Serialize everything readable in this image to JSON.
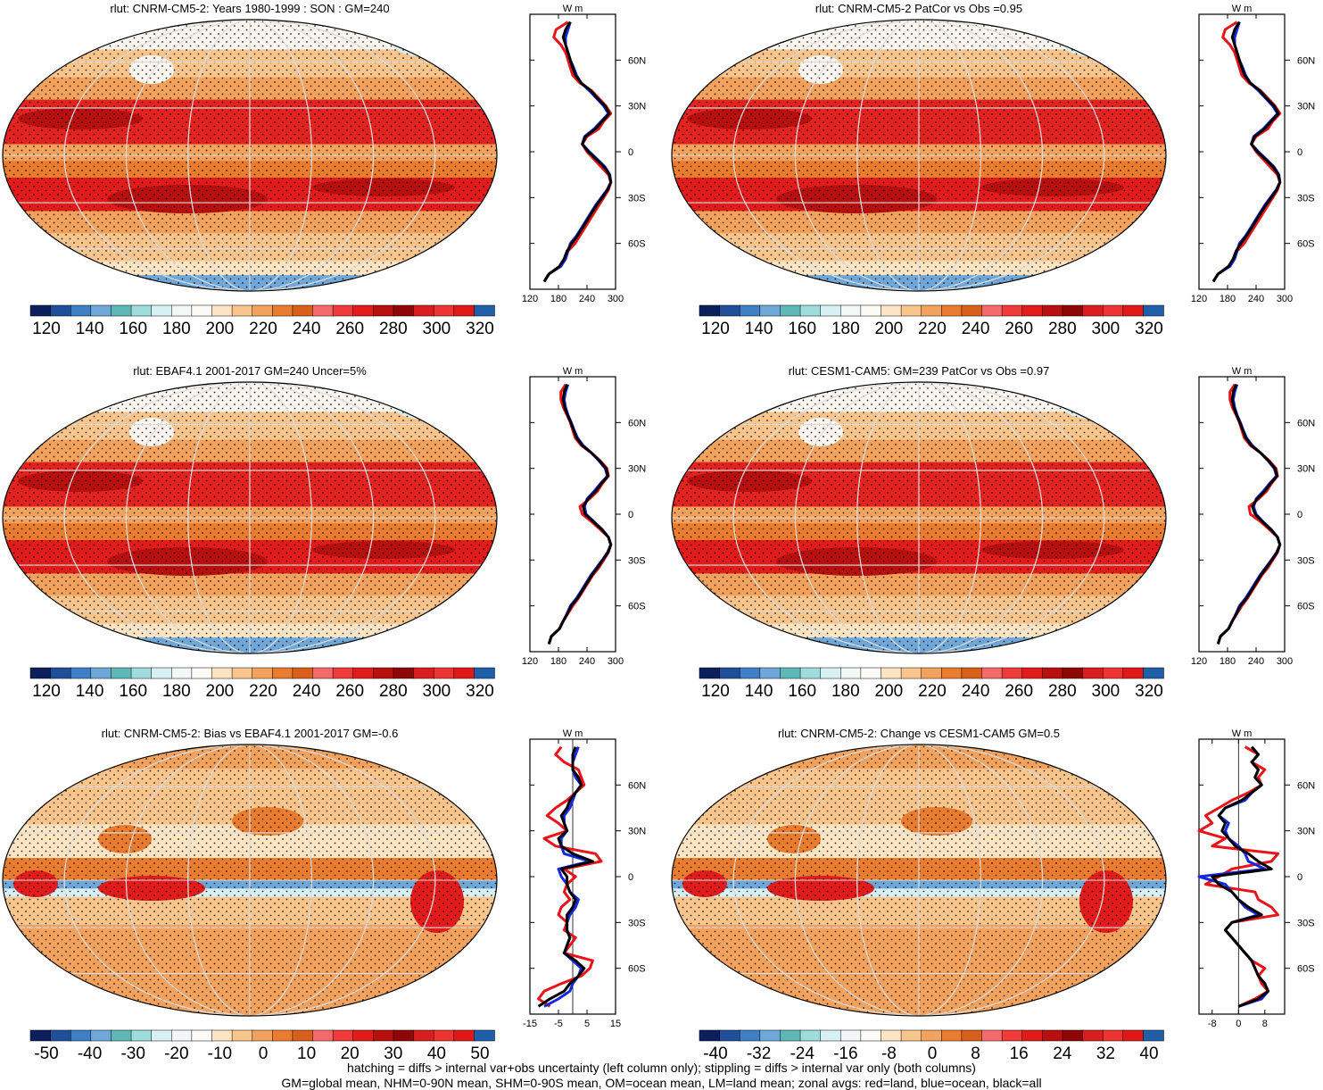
{
  "palette": {
    "abs": [
      "#0b1f5c",
      "#1f4e9a",
      "#3f7fc6",
      "#6fa8d8",
      "#5fb8b8",
      "#9fdcdc",
      "#d7f0f4",
      "#f2f7f7",
      "#fbfaf5",
      "#fde4c2",
      "#f9c58d",
      "#f2a25c",
      "#e97c2f",
      "#d8601c",
      "#f46a6a",
      "#f03b3b",
      "#e21b1b",
      "#b80f0f",
      "#8e0606",
      "#d81e1e",
      "#ee3333",
      "#e01818",
      "#1f5fa8"
    ],
    "diff": [
      "#0b1f5c",
      "#1f4e9a",
      "#3f7fc6",
      "#6fa8d8",
      "#5fb8b8",
      "#9fdcdc",
      "#d7f0f4",
      "#f2f7f7",
      "#fbfaf5",
      "#fde4c2",
      "#f9c58d",
      "#f2a25c",
      "#e97c2f",
      "#d8601c",
      "#f46a6a",
      "#f03b3b",
      "#e21b1b",
      "#b80f0f",
      "#8e0606",
      "#d81e1e",
      "#ee3333",
      "#e01818",
      "#1f5fa8"
    ]
  },
  "chart_data": [
    {
      "type": "heatmap",
      "id": "p1",
      "title": "rlut: CNRM-CM5-2: Years 1980-1999 : SON : GM=240",
      "colorbar_labels": [
        "120",
        "140",
        "160",
        "180",
        "200",
        "220",
        "240",
        "260",
        "280",
        "300",
        "320"
      ],
      "zonal": {
        "unit_label": "W m",
        "xticks": [
          "120",
          "180",
          "240",
          "300"
        ],
        "xlim": [
          120,
          300
        ],
        "yticks": [
          "60N",
          "30N",
          "0",
          "30S",
          "60S"
        ],
        "lat": [
          85,
          80,
          75,
          70,
          65,
          60,
          55,
          50,
          45,
          40,
          35,
          30,
          25,
          20,
          15,
          10,
          5,
          0,
          -5,
          -10,
          -15,
          -20,
          -25,
          -30,
          -35,
          -40,
          -45,
          -50,
          -55,
          -60,
          -65,
          -70,
          -75,
          -80,
          -85
        ],
        "land": [
          200,
          175,
          170,
          185,
          195,
          200,
          205,
          210,
          225,
          250,
          265,
          280,
          290,
          275,
          265,
          240,
          230,
          240,
          255,
          270,
          285,
          290,
          285,
          275,
          265,
          255,
          245,
          235,
          225,
          215,
          200,
          195,
          185,
          160,
          150
        ],
        "ocean": [
          205,
          200,
          195,
          195,
          200,
          205,
          212,
          218,
          228,
          245,
          260,
          275,
          285,
          270,
          255,
          235,
          230,
          245,
          262,
          278,
          288,
          290,
          282,
          270,
          258,
          248,
          238,
          228,
          218,
          205,
          200,
          195,
          185,
          160,
          150
        ],
        "all": [
          205,
          195,
          190,
          195,
          200,
          205,
          210,
          216,
          228,
          248,
          262,
          278,
          287,
          272,
          258,
          237,
          230,
          243,
          260,
          276,
          287,
          290,
          283,
          272,
          260,
          250,
          240,
          230,
          220,
          208,
          198,
          192,
          182,
          160,
          150
        ]
      }
    },
    {
      "type": "heatmap",
      "id": "p2",
      "title": "rlut: CNRM-CM5-2 PatCor vs Obs =0.95",
      "colorbar_labels": [
        "120",
        "140",
        "160",
        "180",
        "200",
        "220",
        "240",
        "260",
        "280",
        "300",
        "320"
      ],
      "zonal": {
        "unit_label": "W m",
        "xticks": [
          "120",
          "180",
          "240",
          "300"
        ],
        "xlim": [
          120,
          300
        ],
        "yticks": [
          "60N",
          "30N",
          "0",
          "30S",
          "60S"
        ],
        "lat": [
          85,
          80,
          75,
          70,
          65,
          60,
          55,
          50,
          45,
          40,
          35,
          30,
          25,
          20,
          15,
          10,
          5,
          0,
          -5,
          -10,
          -15,
          -20,
          -25,
          -30,
          -35,
          -40,
          -45,
          -50,
          -55,
          -60,
          -65,
          -70,
          -75,
          -80,
          -85
        ],
        "land": [
          200,
          175,
          170,
          185,
          195,
          200,
          205,
          210,
          225,
          250,
          265,
          280,
          290,
          275,
          265,
          240,
          230,
          240,
          255,
          270,
          285,
          290,
          285,
          275,
          265,
          255,
          245,
          235,
          225,
          215,
          200,
          195,
          185,
          160,
          150
        ],
        "ocean": [
          205,
          200,
          195,
          195,
          200,
          205,
          212,
          218,
          228,
          245,
          260,
          275,
          285,
          270,
          255,
          235,
          230,
          245,
          262,
          278,
          288,
          290,
          282,
          270,
          258,
          248,
          238,
          228,
          218,
          205,
          200,
          195,
          185,
          160,
          150
        ],
        "all": [
          205,
          195,
          190,
          195,
          200,
          205,
          210,
          216,
          228,
          248,
          262,
          278,
          287,
          272,
          258,
          237,
          230,
          243,
          260,
          276,
          287,
          290,
          283,
          272,
          260,
          250,
          240,
          230,
          220,
          208,
          198,
          192,
          182,
          160,
          150
        ]
      }
    },
    {
      "type": "heatmap",
      "id": "p3",
      "title": "rlut: EBAF4.1 2001-2017 GM=240 Uncer=5%",
      "colorbar_labels": [
        "120",
        "140",
        "160",
        "180",
        "200",
        "220",
        "240",
        "260",
        "280",
        "300",
        "320"
      ],
      "zonal": {
        "unit_label": "W m",
        "xticks": [
          "120",
          "180",
          "240",
          "300"
        ],
        "xlim": [
          120,
          300
        ],
        "yticks": [
          "60N",
          "30N",
          "0",
          "30S",
          "60S"
        ],
        "lat": [
          85,
          80,
          75,
          70,
          65,
          60,
          55,
          50,
          45,
          40,
          35,
          30,
          25,
          20,
          15,
          10,
          5,
          0,
          -5,
          -10,
          -15,
          -20,
          -25,
          -30,
          -35,
          -40,
          -45,
          -50,
          -55,
          -60,
          -65,
          -70,
          -75,
          -80,
          -85
        ],
        "land": [
          195,
          185,
          185,
          190,
          198,
          205,
          210,
          215,
          228,
          250,
          268,
          282,
          285,
          272,
          262,
          245,
          225,
          230,
          250,
          268,
          285,
          290,
          285,
          275,
          265,
          252,
          242,
          232,
          222,
          210,
          200,
          190,
          182,
          165,
          160
        ],
        "ocean": [
          200,
          195,
          192,
          195,
          200,
          207,
          213,
          220,
          232,
          250,
          265,
          278,
          283,
          268,
          255,
          240,
          235,
          238,
          255,
          272,
          285,
          290,
          283,
          272,
          260,
          248,
          238,
          228,
          218,
          205,
          198,
          190,
          182,
          165,
          160
        ],
        "all": [
          198,
          192,
          190,
          193,
          199,
          206,
          212,
          218,
          230,
          250,
          266,
          280,
          284,
          270,
          258,
          242,
          232,
          236,
          254,
          271,
          285,
          290,
          284,
          273,
          262,
          250,
          240,
          230,
          220,
          207,
          199,
          190,
          182,
          165,
          160
        ]
      }
    },
    {
      "type": "heatmap",
      "id": "p4",
      "title": "rlut: CESM1-CAM5: GM=239 PatCor vs Obs =0.97",
      "colorbar_labels": [
        "120",
        "140",
        "160",
        "180",
        "200",
        "220",
        "240",
        "260",
        "280",
        "300",
        "320"
      ],
      "zonal": {
        "unit_label": "W m",
        "xticks": [
          "120",
          "180",
          "240",
          "300"
        ],
        "xlim": [
          120,
          300
        ],
        "yticks": [
          "60N",
          "30N",
          "0",
          "30S",
          "60S"
        ],
        "lat": [
          85,
          80,
          75,
          70,
          65,
          60,
          55,
          50,
          45,
          40,
          35,
          30,
          25,
          20,
          15,
          10,
          5,
          0,
          -5,
          -10,
          -15,
          -20,
          -25,
          -30,
          -35,
          -40,
          -45,
          -50,
          -55,
          -60,
          -65,
          -70,
          -75,
          -80,
          -85
        ],
        "land": [
          195,
          185,
          185,
          190,
          198,
          205,
          210,
          215,
          228,
          250,
          268,
          282,
          285,
          272,
          262,
          245,
          225,
          228,
          250,
          268,
          285,
          290,
          285,
          275,
          265,
          252,
          242,
          232,
          222,
          210,
          200,
          190,
          182,
          165,
          160
        ],
        "ocean": [
          200,
          195,
          192,
          195,
          200,
          207,
          213,
          220,
          232,
          250,
          265,
          278,
          283,
          268,
          255,
          240,
          235,
          240,
          255,
          272,
          285,
          290,
          283,
          272,
          260,
          248,
          238,
          228,
          218,
          205,
          198,
          190,
          182,
          165,
          160
        ],
        "all": [
          198,
          192,
          190,
          193,
          199,
          206,
          212,
          218,
          230,
          250,
          266,
          280,
          284,
          270,
          258,
          242,
          232,
          238,
          254,
          271,
          285,
          290,
          284,
          273,
          262,
          250,
          240,
          230,
          220,
          207,
          199,
          190,
          182,
          165,
          160
        ]
      }
    },
    {
      "type": "heatmap",
      "id": "p5",
      "title": "rlut: CNRM-CM5-2: Bias vs EBAF4.1 2001-2017  GM=-0.6",
      "colorbar_labels": [
        "-50",
        "-40",
        "-30",
        "-20",
        "-10",
        "0",
        "10",
        "20",
        "30",
        "40",
        "50"
      ],
      "zonal": {
        "unit_label": "W m",
        "xticks": [
          "-15",
          "-5",
          "5",
          "15"
        ],
        "xlim": [
          -15,
          15
        ],
        "yticks": [
          "60N",
          "30N",
          "0",
          "30S",
          "60S"
        ],
        "lat": [
          85,
          80,
          75,
          70,
          65,
          60,
          55,
          50,
          45,
          40,
          35,
          30,
          25,
          20,
          15,
          10,
          5,
          0,
          -5,
          -10,
          -15,
          -20,
          -25,
          -30,
          -35,
          -40,
          -45,
          -50,
          -55,
          -60,
          -65,
          -70,
          -75,
          -80,
          -85
        ],
        "land": [
          -4,
          -6,
          -3,
          2,
          3,
          4,
          1,
          -2,
          -6,
          -9,
          -5,
          -2,
          -10,
          -6,
          8,
          10,
          -3,
          1,
          -2,
          -3,
          -1,
          -4,
          -5,
          -2,
          -3,
          1,
          -1,
          -3,
          7,
          6,
          3,
          -4,
          -10,
          -12,
          -8
        ],
        "ocean": [
          2,
          1,
          0,
          0,
          1,
          3,
          1,
          0,
          -1,
          -3,
          -3,
          -2,
          -4,
          -4,
          -3,
          6,
          -5,
          -4,
          -2,
          -1,
          2,
          1,
          -1,
          -2,
          -2,
          -1,
          -2,
          -3,
          0,
          3,
          2,
          0,
          -1,
          -5,
          -10
        ],
        "all": [
          1,
          0,
          0,
          0,
          2,
          3,
          1,
          -1,
          -2,
          -4,
          -3,
          -2,
          -5,
          -4,
          0,
          7,
          -4,
          -2,
          -2,
          -1,
          1,
          0,
          -2,
          -2,
          -2,
          -1,
          -2,
          -3,
          1,
          4,
          2,
          -1,
          -3,
          -8,
          -12
        ]
      }
    },
    {
      "type": "heatmap",
      "id": "p6",
      "title": "rlut: CNRM-CM5-2: Change vs CESM1-CAM5 GM=0.5",
      "colorbar_labels": [
        "-40",
        "-32",
        "-24",
        "-16",
        "-8",
        "0",
        "8",
        "16",
        "24",
        "32",
        "40"
      ],
      "zonal": {
        "unit_label": "W m",
        "xticks": [
          "-8",
          "0",
          "8"
        ],
        "xlim": [
          -12,
          14
        ],
        "yticks": [
          "60N",
          "30N",
          "0",
          "30S",
          "60S"
        ],
        "lat": [
          85,
          80,
          75,
          70,
          65,
          60,
          55,
          50,
          45,
          40,
          35,
          30,
          25,
          20,
          15,
          10,
          5,
          0,
          -5,
          -10,
          -15,
          -20,
          -25,
          -30,
          -35,
          -40,
          -45,
          -50,
          -55,
          -60,
          -65,
          -70,
          -75,
          -80,
          -85
        ],
        "land": [
          2,
          6,
          4,
          8,
          6,
          7,
          3,
          -2,
          -6,
          -10,
          -8,
          -12,
          -4,
          -8,
          12,
          10,
          -2,
          -6,
          -10,
          5,
          6,
          10,
          12,
          -2,
          -4,
          -2,
          0,
          2,
          4,
          8,
          6,
          7,
          9,
          5,
          0
        ],
        "ocean": [
          4,
          6,
          4,
          6,
          5,
          7,
          4,
          2,
          -4,
          -6,
          -3,
          -4,
          -3,
          0,
          2,
          3,
          8,
          -12,
          -4,
          -2,
          0,
          2,
          6,
          -2,
          -4,
          -2,
          0,
          2,
          4,
          5,
          6,
          8,
          9,
          7,
          0
        ],
        "all": [
          4,
          6,
          4,
          6,
          5,
          7,
          4,
          1,
          -4,
          -6,
          -4,
          -5,
          -3,
          -1,
          3,
          6,
          10,
          -8,
          -6,
          -2,
          0,
          3,
          7,
          -2,
          -4,
          -2,
          0,
          2,
          4,
          5,
          6,
          8,
          9,
          6,
          0
        ]
      }
    }
  ],
  "footer": {
    "line1": "hatching = diffs > internal var+obs uncertainty (left column only); stippling = diffs > internal var only (both columns)",
    "line2": "GM=global mean, NHM=0-90N mean, SHM=0-90S mean, OM=ocean mean, LM=land mean; zonal avgs: red=land, blue=ocean, black=all"
  }
}
